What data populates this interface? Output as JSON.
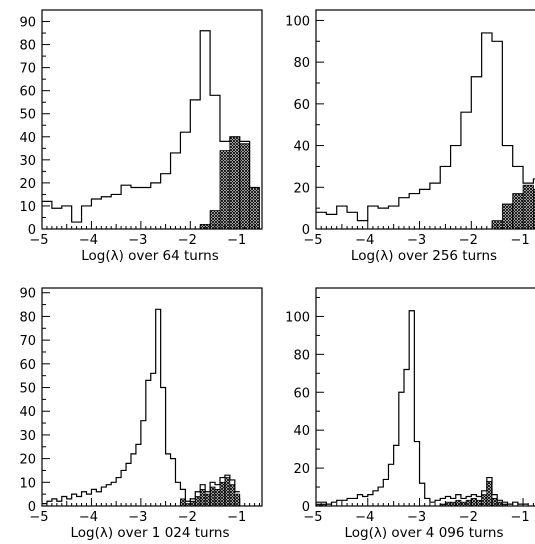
{
  "colors": {
    "outline": "#000000",
    "hatch": "#000000",
    "background": "#ffffff"
  },
  "chart_data": [
    {
      "type": "histogram",
      "xlabel": "Log(λ) over 64 turns",
      "xlim": [
        -5,
        -0.55
      ],
      "ylim": [
        0,
        95
      ],
      "xticks": [
        -5,
        -4,
        -3,
        -2,
        -1
      ],
      "yticks": [
        0,
        10,
        20,
        30,
        40,
        50,
        60,
        70,
        80,
        90
      ],
      "xtick_labels": [
        "−5",
        "−4",
        "−3",
        "−2",
        "−1"
      ],
      "ytick_labels": [
        "0",
        "10",
        "20",
        "30",
        "40",
        "50",
        "60",
        "70",
        "80",
        "90"
      ],
      "bin_start": -5,
      "bin_width": 0.2,
      "series": [
        {
          "fill": "none",
          "values": [
            12,
            9,
            10,
            3,
            10,
            13,
            14,
            15,
            19,
            18,
            18,
            20,
            24,
            33,
            42,
            56,
            86,
            58,
            38,
            40,
            38,
            18
          ]
        },
        {
          "fill": "crosshatch",
          "values": [
            0,
            0,
            0,
            0,
            0,
            0,
            0,
            0,
            0,
            0,
            0,
            0,
            0,
            0,
            0,
            0,
            2,
            8,
            34,
            40,
            37,
            18
          ]
        }
      ]
    },
    {
      "type": "histogram",
      "xlabel": "Log(λ) over 256 turns",
      "xlim": [
        -5,
        -0.75
      ],
      "ylim": [
        0,
        105
      ],
      "xticks": [
        -5,
        -4,
        -3,
        -2,
        -1
      ],
      "yticks": [
        0,
        20,
        40,
        60,
        80,
        100
      ],
      "xtick_labels": [
        "−5",
        "−4",
        "−3",
        "−2",
        "−1"
      ],
      "ytick_labels": [
        "0",
        "20",
        "40",
        "60",
        "80",
        "100"
      ],
      "bin_start": -5,
      "bin_width": 0.2,
      "series": [
        {
          "fill": "none",
          "values": [
            8,
            7,
            11,
            8,
            4,
            11,
            10,
            11,
            15,
            17,
            19,
            22,
            30,
            40,
            56,
            73,
            94,
            90,
            40,
            30,
            22,
            24,
            26,
            22
          ]
        },
        {
          "fill": "crosshatch",
          "values": [
            0,
            0,
            0,
            0,
            0,
            0,
            0,
            0,
            0,
            0,
            0,
            0,
            0,
            0,
            0,
            0,
            0,
            4,
            12,
            17,
            21,
            19,
            23,
            27
          ]
        }
      ]
    },
    {
      "type": "histogram",
      "xlabel": "Log(λ) over 1 024 turns",
      "xlim": [
        -5,
        -0.55
      ],
      "ylim": [
        0,
        92
      ],
      "xticks": [
        -5,
        -4,
        -3,
        -2,
        -1
      ],
      "yticks": [
        0,
        10,
        20,
        30,
        40,
        50,
        60,
        70,
        80,
        90
      ],
      "xtick_labels": [
        "−5",
        "−4",
        "−3",
        "−2",
        "−1"
      ],
      "ytick_labels": [
        "0",
        "10",
        "20",
        "30",
        "40",
        "50",
        "60",
        "70",
        "80",
        "90"
      ],
      "bin_start": -5.1,
      "bin_width": 0.1,
      "series": [
        {
          "fill": "none",
          "values": [
            0,
            1,
            2,
            3,
            2,
            4,
            3,
            5,
            4,
            6,
            5,
            7,
            6,
            8,
            9,
            10,
            12,
            15,
            18,
            22,
            26,
            36,
            53,
            56,
            83,
            50,
            22,
            20,
            10,
            7,
            2,
            3,
            6,
            9,
            6,
            10,
            9,
            12,
            13,
            11,
            6
          ]
        },
        {
          "fill": "crosshatch",
          "values": [
            0,
            0,
            0,
            0,
            0,
            0,
            0,
            0,
            0,
            0,
            0,
            0,
            0,
            0,
            0,
            0,
            0,
            0,
            0,
            0,
            0,
            0,
            0,
            0,
            0,
            0,
            0,
            0,
            0,
            3,
            1,
            2,
            4,
            7,
            5,
            8,
            7,
            10,
            12,
            9,
            5
          ]
        }
      ]
    },
    {
      "type": "histogram",
      "xlabel": "Log(λ) over 4 096 turns",
      "xlim": [
        -5,
        -0.75
      ],
      "ylim": [
        0,
        115
      ],
      "xticks": [
        -5,
        -4,
        -3,
        -2,
        -1
      ],
      "yticks": [
        0,
        20,
        40,
        60,
        80,
        100
      ],
      "xtick_labels": [
        "−5",
        "−4",
        "−3",
        "−2",
        "−1"
      ],
      "ytick_labels": [
        "0",
        "20",
        "40",
        "60",
        "80",
        "100"
      ],
      "bin_start": -5.0,
      "bin_width": 0.1,
      "series": [
        {
          "fill": "none",
          "values": [
            2,
            2,
            1,
            2,
            3,
            3,
            4,
            4,
            6,
            5,
            6,
            8,
            10,
            14,
            22,
            32,
            60,
            72,
            103,
            34,
            12,
            4,
            2,
            3,
            4,
            5,
            4,
            6,
            4,
            5,
            6,
            5,
            8,
            15,
            6,
            3,
            2,
            1,
            2,
            1,
            1
          ]
        },
        {
          "fill": "crosshatch",
          "values": [
            1,
            1,
            0,
            0,
            0,
            0,
            0,
            0,
            0,
            0,
            0,
            0,
            0,
            0,
            0,
            0,
            0,
            0,
            0,
            0,
            0,
            0,
            0,
            0,
            1,
            2,
            2,
            3,
            2,
            3,
            4,
            3,
            6,
            13,
            4,
            2,
            1,
            0,
            0,
            0,
            0
          ]
        }
      ]
    }
  ]
}
